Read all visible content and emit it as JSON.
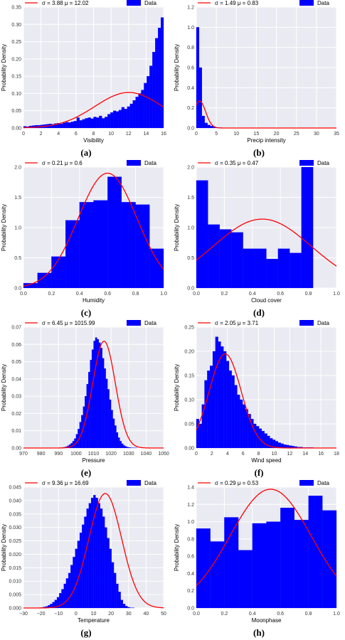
{
  "colors": {
    "bar": "#0000ff",
    "curve": "#ff0000",
    "plot_bg": "#eaeaf2",
    "grid": "#ffffff"
  },
  "ylabel_common": "Probability Density",
  "chart_data": [
    {
      "panel": "(a)",
      "type": "bar",
      "xlabel": "Visibility",
      "ylabel": "Probability Density",
      "xlim": [
        0,
        16
      ],
      "ylim": [
        0,
        0.35
      ],
      "xticks": [
        "0",
        "2",
        "4",
        "6",
        "8",
        "10",
        "12",
        "14",
        "16"
      ],
      "yticks": [
        "0.00",
        "0.05",
        "0.10",
        "0.15",
        "0.20",
        "0.25",
        "0.30",
        "0.35"
      ],
      "legend": {
        "fit": "σ = 3.88 μ = 12.02",
        "data": "Data"
      },
      "fit": {
        "sigma": 3.88,
        "mu": 12.02
      },
      "bin_start": 0,
      "bin_width": 0.32,
      "values": [
        0.005,
        0.004,
        0.006,
        0.007,
        0.008,
        0.008,
        0.009,
        0.01,
        0.011,
        0.012,
        0.011,
        0.013,
        0.014,
        0.012,
        0.015,
        0.017,
        0.016,
        0.018,
        0.02,
        0.03,
        0.022,
        0.025,
        0.028,
        0.03,
        0.027,
        0.032,
        0.03,
        0.035,
        0.028,
        0.032,
        0.04,
        0.045,
        0.05,
        0.048,
        0.052,
        0.06,
        0.055,
        0.062,
        0.07,
        0.08,
        0.09,
        0.1,
        0.11,
        0.13,
        0.15,
        0.18,
        0.22,
        0.26,
        0.29,
        0.32
      ]
    },
    {
      "panel": "(b)",
      "type": "bar",
      "xlabel": "Precip intensity",
      "ylabel": "Probability Density",
      "xlim": [
        0,
        35
      ],
      "ylim": [
        0,
        1.2
      ],
      "xticks": [
        "0",
        "5",
        "10",
        "15",
        "20",
        "25",
        "30",
        "35"
      ],
      "yticks": [
        "0.0",
        "0.2",
        "0.4",
        "0.6",
        "0.8",
        "1.0",
        "1.2"
      ],
      "legend": {
        "fit": "σ = 1.49 μ = 0.83",
        "data": "Data"
      },
      "fit": {
        "sigma": 1.49,
        "mu": 0.83
      },
      "bin_start": 0,
      "bin_width": 0.7,
      "values": [
        1.0,
        0.6,
        0.12,
        0.05,
        0.03,
        0.02,
        0.01,
        0.006,
        0.004,
        0.003,
        0.002,
        0.002,
        0.001,
        0.001,
        0.001,
        0,
        0,
        0,
        0,
        0,
        0,
        0,
        0,
        0,
        0,
        0,
        0,
        0,
        0,
        0,
        0,
        0,
        0,
        0,
        0,
        0,
        0,
        0,
        0,
        0,
        0,
        0,
        0,
        0,
        0,
        0,
        0,
        0,
        0,
        0
      ]
    },
    {
      "panel": "(c)",
      "type": "bar",
      "xlabel": "Humidity",
      "ylabel": "Probability Density",
      "xlim": [
        0,
        1
      ],
      "ylim": [
        0,
        2.0
      ],
      "xticks": [
        "0.0",
        "0.2",
        "0.4",
        "0.6",
        "0.8",
        "1.0"
      ],
      "yticks": [
        "0.0",
        "0.5",
        "1.0",
        "1.5",
        "2.0"
      ],
      "legend": {
        "fit": "σ = 0.21 μ = 0.6",
        "data": "Data"
      },
      "fit": {
        "sigma": 0.21,
        "mu": 0.6
      },
      "bin_start": 0,
      "bin_width": 0.1,
      "values": [
        0.08,
        0.25,
        0.52,
        1.12,
        1.42,
        1.45,
        1.84,
        1.42,
        1.38,
        0.65
      ]
    },
    {
      "panel": "(d)",
      "type": "bar",
      "xlabel": "Cloud cover",
      "ylabel": "Probability Density",
      "xlim": [
        0,
        1
      ],
      "ylim": [
        0,
        2.0
      ],
      "xticks": [
        "0.0",
        "0.2",
        "0.4",
        "0.6",
        "0.8",
        "1.0"
      ],
      "yticks": [
        "0.0",
        "0.5",
        "1.0",
        "1.5",
        "2.0"
      ],
      "legend": {
        "fit": "σ = 0.35 μ = 0.47",
        "data": "Data"
      },
      "fit": {
        "sigma": 0.35,
        "mu": 0.47
      },
      "bin_start": 0,
      "bin_width": 0.0833,
      "values": [
        1.78,
        1.05,
        0.97,
        0.92,
        0.65,
        0.65,
        0.48,
        0.65,
        0.58,
        2.0
      ]
    },
    {
      "panel": "(e)",
      "type": "bar",
      "xlabel": "Pressure",
      "ylabel": "Probability Density",
      "xlim": [
        970,
        1050
      ],
      "ylim": [
        0,
        0.07
      ],
      "xticks": [
        "970",
        "980",
        "990",
        "1000",
        "1010",
        "1020",
        "1030",
        "1040",
        "1050"
      ],
      "yticks": [
        "0.00",
        "0.01",
        "0.02",
        "0.03",
        "0.04",
        "0.05",
        "0.06",
        "0.07"
      ],
      "legend": {
        "fit": "σ = 6.45 μ = 1015.99",
        "data": "Data"
      },
      "fit": {
        "sigma": 6.45,
        "mu": 1015.99
      },
      "bin_start": 990,
      "bin_width": 1,
      "values": [
        0.0001,
        0.0002,
        0.0003,
        0.0005,
        0.0008,
        0.0013,
        0.002,
        0.0028,
        0.004,
        0.0055,
        0.008,
        0.011,
        0.015,
        0.019,
        0.024,
        0.03,
        0.037,
        0.044,
        0.051,
        0.057,
        0.062,
        0.064,
        0.063,
        0.061,
        0.058,
        0.052,
        0.046,
        0.04,
        0.034,
        0.028,
        0.022,
        0.017,
        0.013,
        0.009,
        0.006,
        0.004,
        0.0025,
        0.0015,
        0.0009,
        0.0005,
        0.0003,
        0.0002,
        0.0001,
        0.0001,
        0.0001,
        0,
        0,
        0,
        0,
        0
      ]
    },
    {
      "panel": "(f)",
      "type": "bar",
      "xlabel": "Wind speed",
      "ylabel": "Probability Density",
      "xlim": [
        0,
        18
      ],
      "ylim": [
        0,
        0.25
      ],
      "xticks": [
        "0",
        "2",
        "4",
        "6",
        "8",
        "10",
        "12",
        "14",
        "16",
        "18"
      ],
      "yticks": [
        "0.00",
        "0.05",
        "0.10",
        "0.15",
        "0.20",
        "0.25"
      ],
      "legend": {
        "fit": "σ = 2.05 μ = 3.71",
        "data": "Data"
      },
      "fit": {
        "sigma": 2.05,
        "mu": 3.71
      },
      "bin_start": 0,
      "bin_width": 0.35,
      "values": [
        0.06,
        0.05,
        0.09,
        0.14,
        0.16,
        0.17,
        0.2,
        0.23,
        0.22,
        0.21,
        0.2,
        0.18,
        0.16,
        0.15,
        0.13,
        0.11,
        0.1,
        0.09,
        0.08,
        0.07,
        0.06,
        0.05,
        0.045,
        0.04,
        0.035,
        0.03,
        0.025,
        0.02,
        0.017,
        0.014,
        0.011,
        0.009,
        0.007,
        0.006,
        0.005,
        0.004,
        0.003,
        0.002,
        0.002,
        0.001,
        0.001,
        0.001,
        0.001,
        0.0005,
        0.0005,
        0.0005,
        0,
        0,
        0,
        0
      ]
    },
    {
      "panel": "(g)",
      "type": "bar",
      "xlabel": "Temperature",
      "ylabel": "Probability Density",
      "xlim": [
        -30,
        50
      ],
      "ylim": [
        0,
        0.045
      ],
      "xticks": [
        "−30",
        "−20",
        "−10",
        "0",
        "10",
        "20",
        "30",
        "40",
        "50"
      ],
      "yticks": [
        "0.000",
        "0.005",
        "0.010",
        "0.015",
        "0.020",
        "0.025",
        "0.030",
        "0.035",
        "0.040",
        "0.045"
      ],
      "legend": {
        "fit": "σ = 9.36 μ = 16.69",
        "data": "Data"
      },
      "fit": {
        "sigma": 9.36,
        "mu": 16.69
      },
      "bin_start": -20,
      "bin_width": 1.3,
      "values": [
        0.0002,
        0.0004,
        0.0006,
        0.001,
        0.0015,
        0.0022,
        0.003,
        0.004,
        0.0055,
        0.007,
        0.009,
        0.011,
        0.013,
        0.016,
        0.019,
        0.022,
        0.025,
        0.028,
        0.031,
        0.034,
        0.037,
        0.039,
        0.041,
        0.042,
        0.041,
        0.039,
        0.037,
        0.034,
        0.03,
        0.026,
        0.022,
        0.017,
        0.013,
        0.009,
        0.006,
        0.003,
        0.0015,
        0.0007,
        0.0003,
        0.0001,
        0.0001,
        0,
        0,
        0,
        0,
        0,
        0,
        0,
        0,
        0
      ]
    },
    {
      "panel": "(h)",
      "type": "bar",
      "xlabel": "Moonphase",
      "ylabel": "Probability Density",
      "xlim": [
        0,
        1
      ],
      "ylim": [
        0,
        1.4
      ],
      "xticks": [
        "0.0",
        "0.2",
        "0.4",
        "0.6",
        "0.8",
        "1.0"
      ],
      "yticks": [
        "0.0",
        "0.2",
        "0.4",
        "0.6",
        "0.8",
        "1.0",
        "1.2",
        "1.4"
      ],
      "legend": {
        "fit": "σ = 0.29 μ = 0.53",
        "data": "Data"
      },
      "fit": {
        "sigma": 0.29,
        "mu": 0.53
      },
      "bin_start": 0,
      "bin_width": 0.1,
      "values": [
        0.92,
        0.77,
        1.05,
        0.67,
        0.98,
        1.0,
        1.16,
        1.02,
        1.3,
        1.13
      ]
    }
  ]
}
